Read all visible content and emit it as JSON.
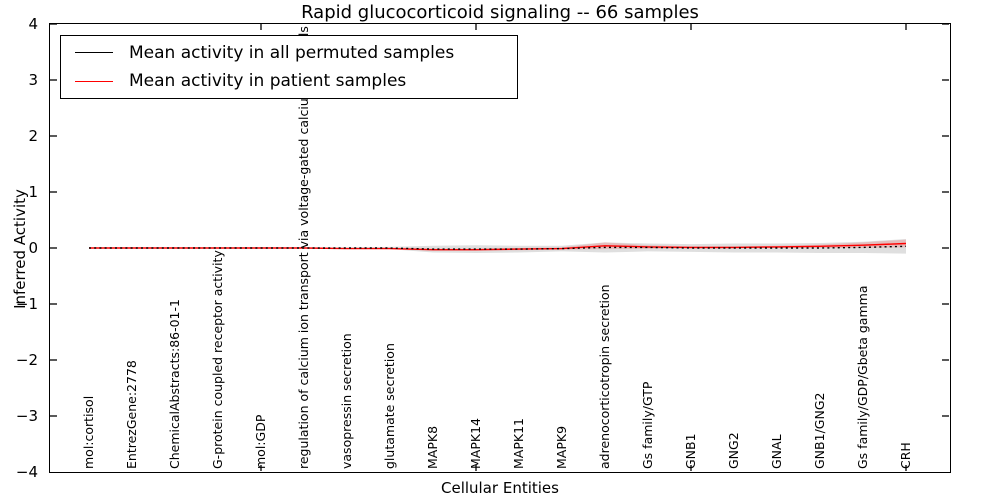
{
  "title": "Rapid glucocorticoid signaling -- 66 samples",
  "y_axis": {
    "label": "Inferred Activity",
    "tick_labels": [
      "4",
      "3",
      "2",
      "1",
      "0",
      "−1",
      "−2",
      "−3",
      "−4"
    ]
  },
  "x_axis": {
    "label": "Cellular Entities"
  },
  "legend": {
    "items": [
      {
        "label": "Mean activity in all permuted samples",
        "color": "#000000"
      },
      {
        "label": "Mean activity in patient samples",
        "color": "#ff0000"
      }
    ]
  },
  "chart_data": {
    "type": "line",
    "title": "Rapid glucocorticoid signaling -- 66 samples",
    "xlabel": "Cellular Entities",
    "ylabel": "Inferred Activity",
    "ylim": [
      -4,
      4
    ],
    "yticks": [
      4,
      3,
      2,
      1,
      0,
      -1,
      -2,
      -3,
      -4
    ],
    "grid": false,
    "legend_position": "upper left",
    "categories": [
      "mol:cortisol",
      "EntrezGene:2778",
      "ChemicalAbstracts:86-01-1",
      "G-protein coupled receptor activity",
      "mol:GDP",
      "regulation of calcium ion transport via voltage-gated calcium channels",
      "vasopressin secretion",
      "glutamate secretion",
      "MAPK8",
      "MAPK14",
      "MAPK11",
      "MAPK9",
      "adrenocorticotropin secretion",
      "Gs family/GTP",
      "GNB1",
      "GNG2",
      "GNAL",
      "GNB1/GNG2",
      "Gs family/GDP/Gbeta gamma",
      "CRH"
    ],
    "xtick_entity_indices": [
      4,
      9,
      14,
      19
    ],
    "series": [
      {
        "name": "Mean activity in all permuted samples",
        "color": "#000000",
        "style": "dotted",
        "values": [
          0,
          0,
          0,
          0,
          0,
          0,
          0,
          0,
          -0.02,
          -0.02,
          -0.02,
          -0.01,
          0.01,
          0.01,
          0,
          0,
          0,
          0,
          0.01,
          0.03
        ]
      },
      {
        "name": "Mean activity in patient samples",
        "color": "#ff0000",
        "style": "solid",
        "values": [
          0,
          0,
          0,
          0,
          0,
          0,
          -0.01,
          -0.01,
          -0.03,
          -0.03,
          -0.02,
          -0.01,
          0.04,
          0.02,
          0.01,
          0.01,
          0.02,
          0.03,
          0.05,
          0.08
        ]
      }
    ],
    "bands": [
      {
        "name": "permuted-samples-range",
        "center_series": 0,
        "color": "#aaaaaa",
        "opacity": 0.38,
        "half_widths": [
          0,
          0,
          0,
          0,
          0,
          0,
          0.01,
          0.02,
          0.06,
          0.07,
          0.06,
          0.05,
          0.09,
          0.07,
          0.07,
          0.08,
          0.08,
          0.09,
          0.1,
          0.13
        ]
      },
      {
        "name": "patient-samples-range",
        "center_series": 1,
        "color": "#ff0000",
        "opacity": 0.15,
        "half_widths": [
          0,
          0,
          0,
          0,
          0,
          0,
          0,
          0.01,
          0.02,
          0.02,
          0.02,
          0.02,
          0.06,
          0.03,
          0.02,
          0.02,
          0.02,
          0.03,
          0.05,
          0.07
        ]
      }
    ]
  }
}
